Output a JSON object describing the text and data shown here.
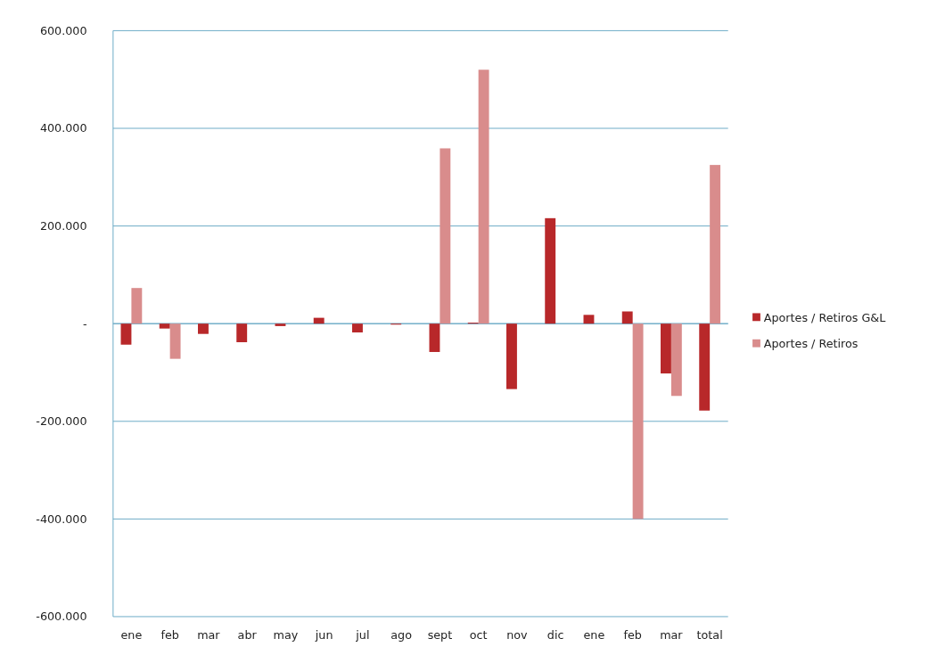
{
  "chart_data": {
    "type": "bar",
    "categories": [
      "ene",
      "feb",
      "mar",
      "abr",
      "may",
      "jun",
      "jul",
      "ago",
      "sept",
      "oct",
      "nov",
      "dic",
      "ene",
      "feb",
      "mar",
      "total"
    ],
    "series": [
      {
        "name": "Aportes / Retiros G&L",
        "color": "#b8282a",
        "values": [
          -43000,
          -10000,
          -21000,
          -38000,
          -5000,
          12000,
          -18000,
          -2000,
          -58000,
          2000,
          -134000,
          216000,
          18000,
          25000,
          -102000,
          -178000
        ]
      },
      {
        "name": "Aportes / Retiros",
        "color": "#d98c8c",
        "values": [
          73000,
          -72000,
          0,
          0,
          0,
          0,
          0,
          0,
          359000,
          520000,
          0,
          0,
          0,
          -400000,
          -148000,
          325000
        ]
      }
    ],
    "ylim": [
      -600000,
      600000
    ],
    "yticks": [
      {
        "value": -600000,
        "label": "-600.000"
      },
      {
        "value": -400000,
        "label": "-400.000"
      },
      {
        "value": -200000,
        "label": "-200.000"
      },
      {
        "value": 0,
        "label": "-"
      },
      {
        "value": 200000,
        "label": "200.000"
      },
      {
        "value": 400000,
        "label": "400.000"
      },
      {
        "value": 600000,
        "label": "600.000"
      }
    ],
    "grid": "y",
    "legend": "right"
  }
}
